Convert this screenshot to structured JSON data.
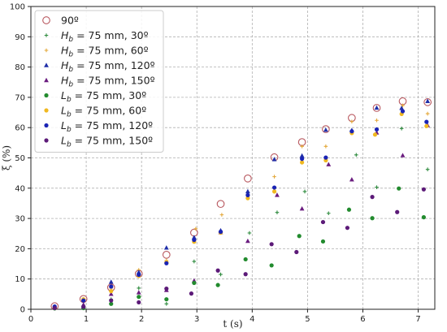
{
  "chart_data": {
    "type": "scatter",
    "xlabel": "t (s)",
    "ylabel": "ξ (%)",
    "xlim": [
      0,
      7.3
    ],
    "ylim": [
      0,
      100
    ],
    "xticks": [
      "0",
      "1",
      "2",
      "3",
      "4",
      "5",
      "6",
      "7"
    ],
    "yticks": [
      "0",
      "10",
      "20",
      "30",
      "40",
      "50",
      "60",
      "70",
      "80",
      "90",
      "100"
    ],
    "grid": true,
    "legend_position": "top-left",
    "series": [
      {
        "name": "90º",
        "marker": "open-circle",
        "color": "#b8585f",
        "points": [
          [
            0.43,
            1.0
          ],
          [
            0.95,
            3.4
          ],
          [
            1.45,
            7.2
          ],
          [
            1.95,
            11.7
          ],
          [
            2.45,
            18.0
          ],
          [
            2.95,
            25.3
          ],
          [
            3.43,
            34.8
          ],
          [
            3.92,
            43.2
          ],
          [
            4.4,
            50.2
          ],
          [
            4.9,
            55.2
          ],
          [
            5.33,
            59.5
          ],
          [
            5.8,
            63.2
          ],
          [
            6.25,
            66.5
          ],
          [
            6.72,
            68.7
          ],
          [
            7.17,
            68.4
          ]
        ]
      },
      {
        "name": "H_b = 75 mm, 30º",
        "marker": "plus",
        "color": "#2e8b3e",
        "points": [
          [
            0.43,
            0.2
          ],
          [
            0.95,
            0.5
          ],
          [
            1.45,
            3.3
          ],
          [
            1.95,
            7.0
          ],
          [
            2.45,
            1.8
          ],
          [
            2.95,
            15.8
          ],
          [
            3.43,
            11.5
          ],
          [
            3.95,
            25.2
          ],
          [
            4.45,
            32.0
          ],
          [
            4.95,
            38.9
          ],
          [
            5.38,
            31.7
          ],
          [
            5.88,
            51.0
          ],
          [
            6.25,
            40.3
          ],
          [
            6.7,
            59.7
          ],
          [
            7.17,
            46.2
          ]
        ]
      },
      {
        "name": "H_b = 75 mm, 60º",
        "marker": "plus",
        "color": "#e3a83a",
        "points": [
          [
            0.43,
            0.5
          ],
          [
            0.95,
            3.0
          ],
          [
            1.45,
            7.0
          ],
          [
            1.95,
            13.0
          ],
          [
            2.45,
            16.1
          ],
          [
            2.98,
            26.6
          ],
          [
            3.45,
            31.2
          ],
          [
            3.92,
            37.4
          ],
          [
            4.4,
            43.8
          ],
          [
            4.9,
            53.8
          ],
          [
            5.33,
            53.8
          ],
          [
            5.8,
            62.0
          ],
          [
            6.25,
            62.4
          ],
          [
            6.72,
            67.3
          ],
          [
            7.17,
            64.6
          ]
        ]
      },
      {
        "name": "H_b = 75 mm, 120º",
        "marker": "triangle",
        "color": "#1f2ea8",
        "points": [
          [
            0.43,
            0.8
          ],
          [
            0.95,
            3.2
          ],
          [
            1.45,
            9.0
          ],
          [
            1.95,
            12.2
          ],
          [
            2.45,
            20.3
          ],
          [
            2.95,
            23.7
          ],
          [
            3.43,
            26.0
          ],
          [
            3.92,
            38.9
          ],
          [
            4.4,
            49.5
          ],
          [
            4.9,
            50.7
          ],
          [
            5.33,
            59.2
          ],
          [
            5.8,
            59.1
          ],
          [
            6.25,
            66.5
          ],
          [
            6.7,
            66.4
          ],
          [
            7.17,
            68.7
          ]
        ]
      },
      {
        "name": "H_b = 75 mm, 150º",
        "marker": "triangle",
        "color": "#6a1c7f",
        "points": [
          [
            0.43,
            0.7
          ],
          [
            0.95,
            1.5
          ],
          [
            1.45,
            5.0
          ],
          [
            1.95,
            5.5
          ],
          [
            2.45,
            6.3
          ],
          [
            2.95,
            9.4
          ],
          [
            3.43,
            25.4
          ],
          [
            3.92,
            22.5
          ],
          [
            4.45,
            37.7
          ],
          [
            4.9,
            33.2
          ],
          [
            5.38,
            47.8
          ],
          [
            5.8,
            42.8
          ],
          [
            6.25,
            58.3
          ],
          [
            6.72,
            50.8
          ],
          [
            7.17,
            60.7
          ]
        ]
      },
      {
        "name": "L_b = 75 mm, 30º",
        "marker": "circle",
        "color": "#228b2e",
        "points": [
          [
            0.43,
            0.3
          ],
          [
            0.95,
            0.4
          ],
          [
            1.45,
            1.8
          ],
          [
            1.95,
            4.1
          ],
          [
            2.45,
            3.3
          ],
          [
            2.95,
            8.7
          ],
          [
            3.38,
            8.0
          ],
          [
            3.88,
            16.5
          ],
          [
            4.35,
            14.5
          ],
          [
            4.85,
            24.2
          ],
          [
            5.28,
            22.4
          ],
          [
            5.75,
            32.9
          ],
          [
            6.17,
            30.1
          ],
          [
            6.65,
            39.9
          ],
          [
            7.1,
            30.4
          ]
        ]
      },
      {
        "name": "L_b = 75 mm, 60º",
        "marker": "circle",
        "color": "#f0b820",
        "points": [
          [
            0.43,
            0.6
          ],
          [
            0.95,
            3.3
          ],
          [
            1.45,
            6.0
          ],
          [
            1.95,
            11.0
          ],
          [
            2.45,
            15.5
          ],
          [
            2.95,
            22.3
          ],
          [
            3.43,
            25.3
          ],
          [
            3.92,
            36.7
          ],
          [
            4.4,
            38.9
          ],
          [
            4.9,
            48.5
          ],
          [
            5.33,
            49.2
          ],
          [
            5.8,
            58.2
          ],
          [
            6.22,
            57.7
          ],
          [
            6.7,
            64.5
          ],
          [
            7.15,
            60.5
          ]
        ]
      },
      {
        "name": "L_b = 75 mm, 120º",
        "marker": "circle",
        "color": "#1a23b4",
        "points": [
          [
            0.43,
            0.9
          ],
          [
            0.95,
            2.9
          ],
          [
            1.45,
            7.5
          ],
          [
            1.95,
            11.4
          ],
          [
            2.45,
            15.2
          ],
          [
            2.95,
            22.9
          ],
          [
            3.43,
            25.6
          ],
          [
            3.92,
            37.7
          ],
          [
            4.4,
            40.2
          ],
          [
            4.9,
            49.7
          ],
          [
            5.33,
            50.1
          ],
          [
            5.8,
            58.8
          ],
          [
            6.25,
            59.4
          ],
          [
            6.72,
            65.4
          ],
          [
            7.15,
            61.9
          ]
        ]
      },
      {
        "name": "L_b = 75 mm, 150º",
        "marker": "circle",
        "color": "#5c1a78",
        "points": [
          [
            0.43,
            0.4
          ],
          [
            0.95,
            0.8
          ],
          [
            1.45,
            2.9
          ],
          [
            1.95,
            2.3
          ],
          [
            2.45,
            6.8
          ],
          [
            2.9,
            5.2
          ],
          [
            3.38,
            12.8
          ],
          [
            3.88,
            11.6
          ],
          [
            4.35,
            21.5
          ],
          [
            4.8,
            18.9
          ],
          [
            5.28,
            28.8
          ],
          [
            5.72,
            26.9
          ],
          [
            6.17,
            37.1
          ],
          [
            6.62,
            32.1
          ],
          [
            7.1,
            39.6
          ]
        ]
      }
    ]
  }
}
